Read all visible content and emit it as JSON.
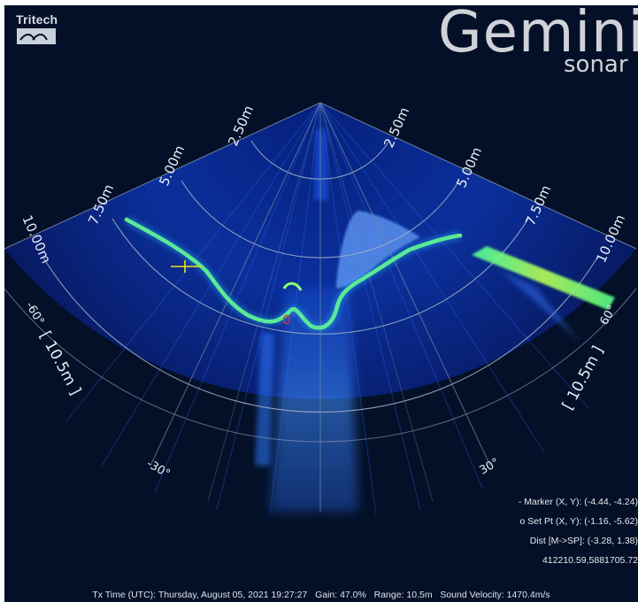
{
  "brand": {
    "company": "Tritech",
    "product": "Gemini",
    "product_sub": "sonar"
  },
  "range_labels_left": [
    "2.50m",
    "5.00m",
    "7.50m",
    "10.00m"
  ],
  "range_labels_right": [
    "2.50m",
    "5.00m",
    "7.50m",
    "10.00m"
  ],
  "angle_labels": {
    "left_edge": "-60°",
    "right_edge": "60°",
    "left_mid": "-30°",
    "right_mid": "30°"
  },
  "range_tag_left": "[ 10.5m ]",
  "range_tag_right": "[ 10.5m ]",
  "readouts": {
    "marker": "- Marker (X, Y): (-4.44, -4.24)",
    "set_point": "o Set Pt (X, Y): (-1.16, -5.62)",
    "distance": "Dist [M->SP]: (-3.28, 1.38)",
    "position": "412210.59,5881705.72"
  },
  "status_bar": "Tx Time (UTC): Thursday, August 05, 2021 19:27:27   Gain: 47.0%   Range: 10.5m   Sound Velocity: 1470.4m/s",
  "colors": {
    "background": "#031027",
    "sonar_base": "#0a2a8a",
    "echo_green": "#8cff6a",
    "marker": "#f2e600",
    "setpoint": "#e0303a"
  }
}
